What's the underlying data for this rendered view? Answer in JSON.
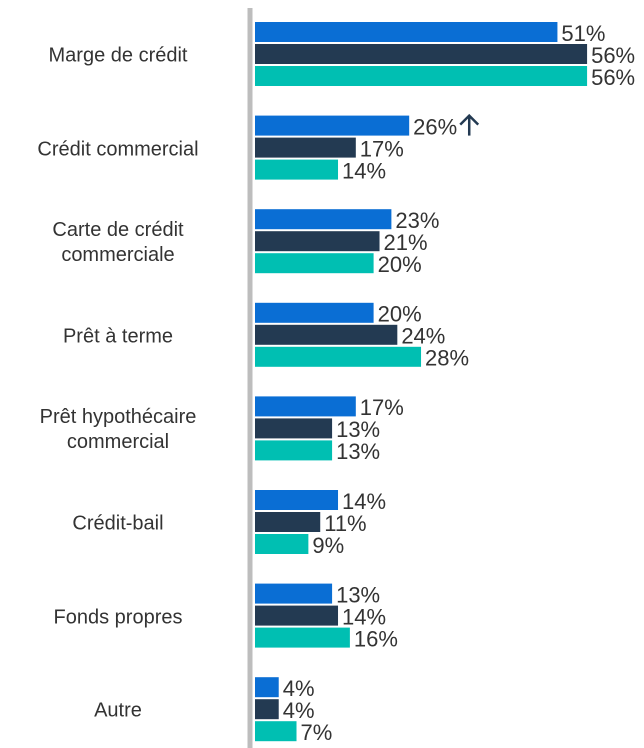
{
  "chart_data": {
    "type": "bar",
    "orientation": "horizontal",
    "categories": [
      "Marge de crédit",
      "Crédit commercial",
      "Carte de crédit commerciale",
      "Prêt à terme",
      "Prêt hypothécaire commercial",
      "Crédit-bail",
      "Fonds propres",
      "Autre"
    ],
    "series": [
      {
        "color": "#0a6ed4",
        "values": [
          51,
          26,
          23,
          20,
          17,
          14,
          13,
          4
        ],
        "value_labels": [
          "51%",
          "26%",
          "23%",
          "20%",
          "17%",
          "14%",
          "13%",
          "4%"
        ]
      },
      {
        "color": "#233a52",
        "values": [
          56,
          17,
          21,
          24,
          13,
          11,
          14,
          4
        ],
        "value_labels": [
          "56%",
          "17%",
          "21%",
          "24%",
          "13%",
          "11%",
          "14%",
          "4%"
        ]
      },
      {
        "color": "#00bfb2",
        "values": [
          56,
          14,
          20,
          28,
          13,
          9,
          16,
          7
        ],
        "value_labels": [
          "56%",
          "14%",
          "20%",
          "28%",
          "13%",
          "9%",
          "16%",
          "7%"
        ]
      }
    ]
  }
}
